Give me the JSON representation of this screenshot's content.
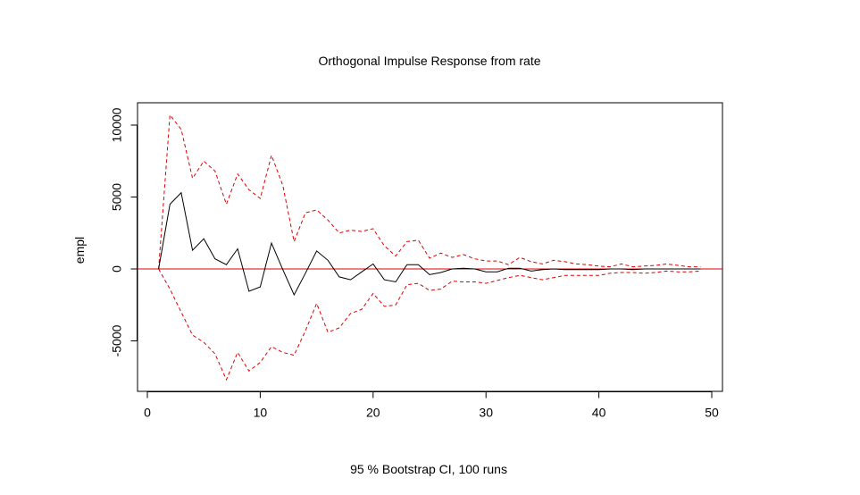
{
  "chart_data": {
    "type": "line",
    "title": "Orthogonal Impulse Response from rate",
    "ylabel": "empl",
    "xlabel": "",
    "subtitle": "95 % Bootstrap CI,  100 runs",
    "xlim": [
      0,
      50
    ],
    "ylim": [
      -8700,
      11500
    ],
    "x_ticks": [
      0,
      10,
      20,
      30,
      40,
      50
    ],
    "y_ticks": [
      -5000,
      0,
      5000,
      10000
    ],
    "grid": false,
    "x": [
      1,
      2,
      3,
      4,
      5,
      6,
      7,
      8,
      9,
      10,
      11,
      12,
      13,
      14,
      15,
      16,
      17,
      18,
      19,
      20,
      21,
      22,
      23,
      24,
      25,
      26,
      27,
      28,
      29,
      30,
      31,
      32,
      33,
      34,
      35,
      36,
      37,
      38,
      39,
      40,
      41,
      42,
      43,
      44,
      45,
      46,
      47,
      48,
      49
    ],
    "series": [
      {
        "role": "response",
        "color": "#000000",
        "dash": "solid",
        "values": [
          0,
          4500,
          5300,
          1300,
          2100,
          700,
          300,
          1400,
          -1550,
          -1250,
          1800,
          -50,
          -1800,
          -300,
          1250,
          600,
          -550,
          -750,
          -200,
          350,
          -750,
          -900,
          300,
          300,
          -400,
          -250,
          0,
          50,
          0,
          -200,
          -200,
          50,
          50,
          -150,
          -50,
          0,
          -50,
          -50,
          -50,
          -50,
          0,
          0,
          -50,
          0,
          0,
          0,
          0,
          0,
          0
        ]
      },
      {
        "role": "upper",
        "color": "#dd0000",
        "dash": "dashed",
        "values": [
          0,
          10700,
          9700,
          6300,
          7500,
          6800,
          4500,
          6600,
          5500,
          4900,
          7900,
          5800,
          1900,
          3900,
          4100,
          3400,
          2500,
          2700,
          2600,
          2800,
          1600,
          900,
          1900,
          2000,
          750,
          1100,
          800,
          1000,
          700,
          550,
          550,
          300,
          800,
          500,
          350,
          600,
          500,
          350,
          300,
          200,
          150,
          350,
          150,
          200,
          250,
          350,
          250,
          150,
          150
        ]
      },
      {
        "role": "lower",
        "color": "#dd0000",
        "dash": "dashed",
        "values": [
          0,
          -1400,
          -3000,
          -4600,
          -5100,
          -5900,
          -7700,
          -5800,
          -7100,
          -6500,
          -5400,
          -5800,
          -6000,
          -4300,
          -2400,
          -4400,
          -4100,
          -3100,
          -2800,
          -1700,
          -2600,
          -2500,
          -1100,
          -1000,
          -1500,
          -1400,
          -850,
          -900,
          -900,
          -1000,
          -800,
          -600,
          -450,
          -600,
          -750,
          -600,
          -450,
          -450,
          -450,
          -450,
          -300,
          -250,
          -250,
          -300,
          -250,
          -150,
          -200,
          -200,
          -150
        ]
      }
    ],
    "reference_line": {
      "y": 0,
      "color": "#dd0000"
    }
  }
}
